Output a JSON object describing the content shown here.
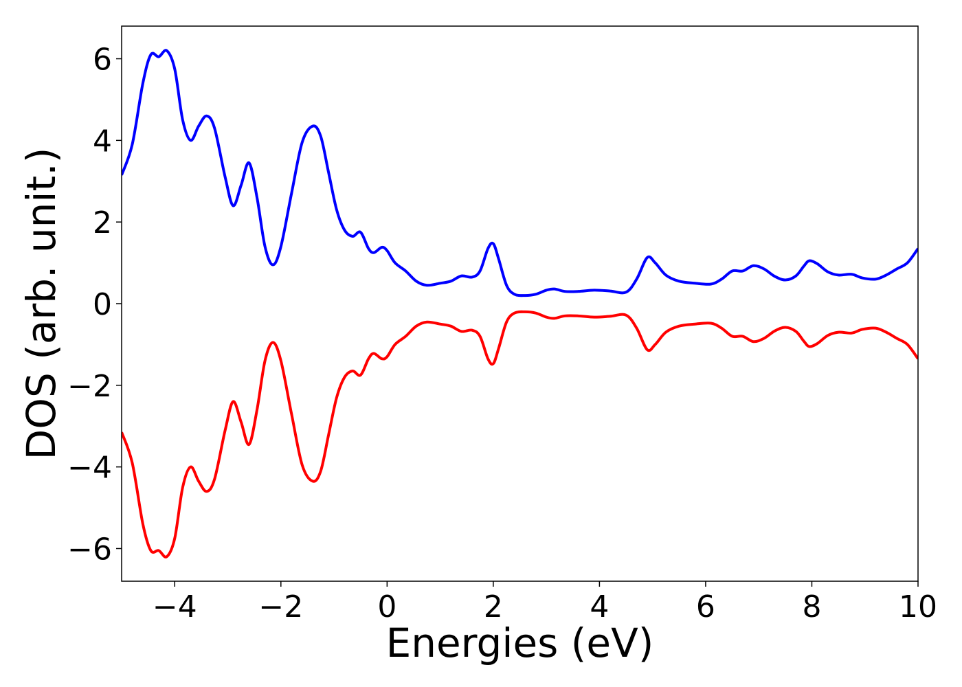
{
  "chart_data": {
    "type": "line",
    "title": "",
    "xlabel": "Energies (eV)",
    "ylabel": "DOS (arb. unit.)",
    "xlim": [
      -5,
      10
    ],
    "ylim": [
      -6.8,
      6.8
    ],
    "grid": false,
    "x_ticks": [
      -4,
      -2,
      0,
      2,
      4,
      6,
      8,
      10
    ],
    "x_tick_labels": [
      "−4",
      "−2",
      "0",
      "2",
      "4",
      "6",
      "8",
      "10"
    ],
    "y_ticks": [
      -6,
      -4,
      -2,
      0,
      2,
      4,
      6
    ],
    "y_tick_labels": [
      "−6",
      "−4",
      "−2",
      "0",
      "2",
      "4",
      "6"
    ],
    "colors": {
      "spin_up": "#0000ff",
      "spin_down": "#ff0000"
    },
    "series": [
      {
        "color": "#0000ff",
        "points": [
          [
            -5.0,
            3.15
          ],
          [
            -4.8,
            3.9
          ],
          [
            -4.6,
            5.4
          ],
          [
            -4.45,
            6.1
          ],
          [
            -4.3,
            6.05
          ],
          [
            -4.15,
            6.2
          ],
          [
            -4.0,
            5.75
          ],
          [
            -3.85,
            4.5
          ],
          [
            -3.7,
            4.0
          ],
          [
            -3.55,
            4.35
          ],
          [
            -3.4,
            4.6
          ],
          [
            -3.25,
            4.3
          ],
          [
            -3.05,
            3.1
          ],
          [
            -2.9,
            2.4
          ],
          [
            -2.75,
            2.9
          ],
          [
            -2.6,
            3.45
          ],
          [
            -2.45,
            2.6
          ],
          [
            -2.3,
            1.4
          ],
          [
            -2.15,
            0.95
          ],
          [
            -2.0,
            1.4
          ],
          [
            -1.8,
            2.7
          ],
          [
            -1.6,
            3.95
          ],
          [
            -1.4,
            4.35
          ],
          [
            -1.25,
            4.1
          ],
          [
            -1.1,
            3.2
          ],
          [
            -0.95,
            2.3
          ],
          [
            -0.8,
            1.8
          ],
          [
            -0.65,
            1.65
          ],
          [
            -0.5,
            1.75
          ],
          [
            -0.35,
            1.35
          ],
          [
            -0.25,
            1.25
          ],
          [
            -0.1,
            1.38
          ],
          [
            0.0,
            1.3
          ],
          [
            0.15,
            1.0
          ],
          [
            0.35,
            0.8
          ],
          [
            0.55,
            0.55
          ],
          [
            0.75,
            0.45
          ],
          [
            1.0,
            0.5
          ],
          [
            1.2,
            0.55
          ],
          [
            1.4,
            0.68
          ],
          [
            1.6,
            0.65
          ],
          [
            1.75,
            0.8
          ],
          [
            1.9,
            1.35
          ],
          [
            2.0,
            1.47
          ],
          [
            2.1,
            1.1
          ],
          [
            2.25,
            0.45
          ],
          [
            2.4,
            0.23
          ],
          [
            2.6,
            0.2
          ],
          [
            2.8,
            0.23
          ],
          [
            3.0,
            0.33
          ],
          [
            3.15,
            0.36
          ],
          [
            3.35,
            0.3
          ],
          [
            3.6,
            0.3
          ],
          [
            3.9,
            0.33
          ],
          [
            4.2,
            0.31
          ],
          [
            4.5,
            0.28
          ],
          [
            4.7,
            0.6
          ],
          [
            4.9,
            1.13
          ],
          [
            5.05,
            1.0
          ],
          [
            5.25,
            0.7
          ],
          [
            5.5,
            0.55
          ],
          [
            5.8,
            0.5
          ],
          [
            6.1,
            0.48
          ],
          [
            6.3,
            0.6
          ],
          [
            6.5,
            0.8
          ],
          [
            6.7,
            0.8
          ],
          [
            6.9,
            0.93
          ],
          [
            7.1,
            0.85
          ],
          [
            7.3,
            0.67
          ],
          [
            7.5,
            0.58
          ],
          [
            7.7,
            0.68
          ],
          [
            7.85,
            0.92
          ],
          [
            7.95,
            1.05
          ],
          [
            8.1,
            0.98
          ],
          [
            8.3,
            0.78
          ],
          [
            8.5,
            0.7
          ],
          [
            8.75,
            0.72
          ],
          [
            8.95,
            0.63
          ],
          [
            9.2,
            0.6
          ],
          [
            9.4,
            0.7
          ],
          [
            9.6,
            0.85
          ],
          [
            9.8,
            1.0
          ],
          [
            10.0,
            1.35
          ]
        ]
      },
      {
        "color": "#ff0000",
        "points": [
          [
            -5.0,
            -3.15
          ],
          [
            -4.8,
            -3.9
          ],
          [
            -4.6,
            -5.4
          ],
          [
            -4.45,
            -6.05
          ],
          [
            -4.3,
            -6.05
          ],
          [
            -4.15,
            -6.2
          ],
          [
            -4.0,
            -5.75
          ],
          [
            -3.85,
            -4.5
          ],
          [
            -3.7,
            -4.0
          ],
          [
            -3.55,
            -4.35
          ],
          [
            -3.4,
            -4.6
          ],
          [
            -3.25,
            -4.3
          ],
          [
            -3.05,
            -3.1
          ],
          [
            -2.9,
            -2.4
          ],
          [
            -2.75,
            -2.9
          ],
          [
            -2.6,
            -3.45
          ],
          [
            -2.45,
            -2.6
          ],
          [
            -2.3,
            -1.4
          ],
          [
            -2.15,
            -0.95
          ],
          [
            -2.0,
            -1.4
          ],
          [
            -1.8,
            -2.7
          ],
          [
            -1.6,
            -3.95
          ],
          [
            -1.4,
            -4.35
          ],
          [
            -1.25,
            -4.1
          ],
          [
            -1.1,
            -3.2
          ],
          [
            -0.95,
            -2.3
          ],
          [
            -0.8,
            -1.8
          ],
          [
            -0.65,
            -1.65
          ],
          [
            -0.5,
            -1.75
          ],
          [
            -0.35,
            -1.35
          ],
          [
            -0.25,
            -1.22
          ],
          [
            -0.1,
            -1.35
          ],
          [
            0.0,
            -1.3
          ],
          [
            0.15,
            -1.0
          ],
          [
            0.35,
            -0.8
          ],
          [
            0.55,
            -0.55
          ],
          [
            0.75,
            -0.45
          ],
          [
            1.0,
            -0.5
          ],
          [
            1.2,
            -0.55
          ],
          [
            1.4,
            -0.68
          ],
          [
            1.6,
            -0.65
          ],
          [
            1.75,
            -0.8
          ],
          [
            1.9,
            -1.35
          ],
          [
            2.0,
            -1.47
          ],
          [
            2.1,
            -1.1
          ],
          [
            2.25,
            -0.45
          ],
          [
            2.4,
            -0.23
          ],
          [
            2.6,
            -0.2
          ],
          [
            2.8,
            -0.23
          ],
          [
            3.0,
            -0.33
          ],
          [
            3.15,
            -0.36
          ],
          [
            3.35,
            -0.3
          ],
          [
            3.6,
            -0.3
          ],
          [
            3.9,
            -0.33
          ],
          [
            4.2,
            -0.31
          ],
          [
            4.5,
            -0.28
          ],
          [
            4.7,
            -0.6
          ],
          [
            4.9,
            -1.13
          ],
          [
            5.05,
            -1.0
          ],
          [
            5.25,
            -0.7
          ],
          [
            5.5,
            -0.55
          ],
          [
            5.8,
            -0.5
          ],
          [
            6.1,
            -0.48
          ],
          [
            6.3,
            -0.6
          ],
          [
            6.5,
            -0.8
          ],
          [
            6.7,
            -0.8
          ],
          [
            6.9,
            -0.93
          ],
          [
            7.1,
            -0.85
          ],
          [
            7.3,
            -0.67
          ],
          [
            7.5,
            -0.58
          ],
          [
            7.7,
            -0.68
          ],
          [
            7.85,
            -0.92
          ],
          [
            7.95,
            -1.05
          ],
          [
            8.1,
            -0.98
          ],
          [
            8.3,
            -0.78
          ],
          [
            8.5,
            -0.7
          ],
          [
            8.75,
            -0.72
          ],
          [
            8.95,
            -0.63
          ],
          [
            9.2,
            -0.6
          ],
          [
            9.4,
            -0.7
          ],
          [
            9.6,
            -0.85
          ],
          [
            9.8,
            -1.0
          ],
          [
            10.0,
            -1.35
          ]
        ]
      }
    ]
  }
}
